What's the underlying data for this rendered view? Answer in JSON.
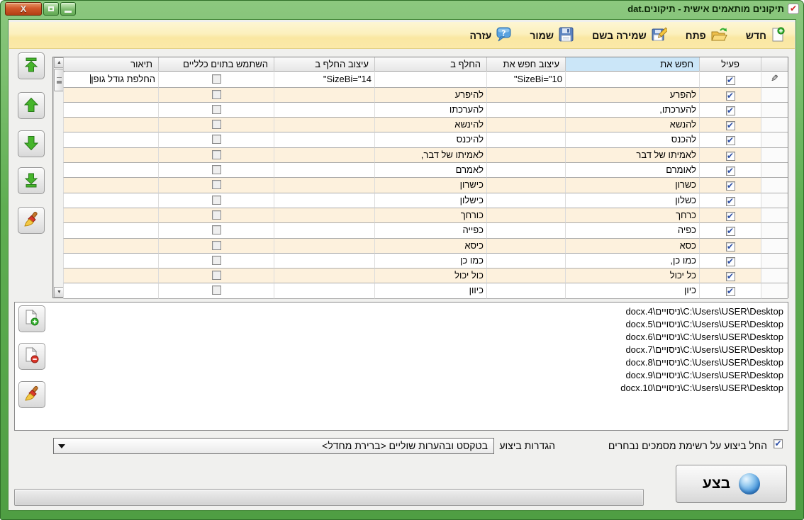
{
  "window": {
    "title": "תיקונים מותאמים אישית - תיקונים.dat",
    "title_icon": "red-check-icon",
    "controls": {
      "close": "X",
      "maximize": "",
      "minimize": ""
    }
  },
  "toolbar": {
    "buttons": [
      {
        "label": "חדש",
        "icon": "new-document-icon"
      },
      {
        "label": "פתח",
        "icon": "open-folder-icon"
      },
      {
        "label": "שמירה בשם",
        "icon": "save-as-icon"
      },
      {
        "label": "שמור",
        "icon": "save-icon"
      },
      {
        "label": "עזרה",
        "icon": "help-icon"
      }
    ]
  },
  "side_buttons": [
    {
      "icon": "move-top-icon"
    },
    {
      "icon": "move-up-icon"
    },
    {
      "icon": "move-down-icon"
    },
    {
      "icon": "move-bottom-icon"
    },
    {
      "icon": "clear-rules-icon"
    }
  ],
  "table": {
    "columns": [
      "פעיל",
      "חפש את",
      "עיצוב חפש את",
      "החלף ב",
      "עיצוב החלף ב",
      "השתמש בתוים כלליים",
      "תיאור"
    ],
    "highlighted_column": "חפש את",
    "rows": [
      {
        "active": true,
        "find": "",
        "find_format": "SizeBi=\"10\"",
        "replace": "",
        "replace_format": "SizeBi=\"14\"",
        "wildcards": false,
        "description": "החלפת גודל גופן",
        "editing": true
      },
      {
        "active": true,
        "find": "להפרע",
        "find_format": "",
        "replace": "להיפרע",
        "replace_format": "",
        "wildcards": false,
        "description": ""
      },
      {
        "active": true,
        "find": "להערכתו,",
        "find_format": "",
        "replace": "להערכתו",
        "replace_format": "",
        "wildcards": false,
        "description": ""
      },
      {
        "active": true,
        "find": "להנשא",
        "find_format": "",
        "replace": "להינשא",
        "replace_format": "",
        "wildcards": false,
        "description": ""
      },
      {
        "active": true,
        "find": "להכנס",
        "find_format": "",
        "replace": "להיכנס",
        "replace_format": "",
        "wildcards": false,
        "description": ""
      },
      {
        "active": true,
        "find": "לאמיתו של דבר",
        "find_format": "",
        "replace": "לאמיתו של דבר,",
        "replace_format": "",
        "wildcards": false,
        "description": ""
      },
      {
        "active": true,
        "find": "לאומרם",
        "find_format": "",
        "replace": "לאמרם",
        "replace_format": "",
        "wildcards": false,
        "description": ""
      },
      {
        "active": true,
        "find": "כשרון",
        "find_format": "",
        "replace": "כישרון",
        "replace_format": "",
        "wildcards": false,
        "description": ""
      },
      {
        "active": true,
        "find": "כשלון",
        "find_format": "",
        "replace": "כישלון",
        "replace_format": "",
        "wildcards": false,
        "description": ""
      },
      {
        "active": true,
        "find": "כרחך",
        "find_format": "",
        "replace": "כורחך",
        "replace_format": "",
        "wildcards": false,
        "description": ""
      },
      {
        "active": true,
        "find": "כפיה",
        "find_format": "",
        "replace": "כפייה",
        "replace_format": "",
        "wildcards": false,
        "description": ""
      },
      {
        "active": true,
        "find": "כסא",
        "find_format": "",
        "replace": "כיסא",
        "replace_format": "",
        "wildcards": false,
        "description": ""
      },
      {
        "active": true,
        "find": "כמו כן,",
        "find_format": "",
        "replace": "כמו כן",
        "replace_format": "",
        "wildcards": false,
        "description": ""
      },
      {
        "active": true,
        "find": "כל יכול",
        "find_format": "",
        "replace": "כול יכול",
        "replace_format": "",
        "wildcards": false,
        "description": ""
      },
      {
        "active": true,
        "find": "כיון",
        "find_format": "",
        "replace": "כיוון",
        "replace_format": "",
        "wildcards": false,
        "description": ""
      }
    ]
  },
  "file_panel": {
    "buttons": [
      {
        "icon": "add-document-icon"
      },
      {
        "icon": "remove-document-icon"
      },
      {
        "icon": "clear-documents-icon"
      }
    ],
    "items": [
      "C:\\Users\\USER\\Desktop\\ניסויים\\4.docx",
      "C:\\Users\\USER\\Desktop\\ניסויים\\5.docx",
      "C:\\Users\\USER\\Desktop\\ניסויים\\6.docx",
      "C:\\Users\\USER\\Desktop\\ניסויים\\7.docx",
      "C:\\Users\\USER\\Desktop\\ניסויים\\8.docx",
      "C:\\Users\\USER\\Desktop\\ניסויים\\9.docx",
      "C:\\Users\\USER\\Desktop\\ניסויים\\10.docx"
    ]
  },
  "execution": {
    "apply_checked": true,
    "apply_label": "החל ביצוע על רשימת מסמכים נבחרים",
    "settings_label": "הגדרות ביצוע",
    "profile_value": "בטקסט ובהערות שוליים <ברירת מחדל>",
    "execute_label": "בצע",
    "progress_value": 0
  },
  "colors": {
    "frame_green": "#5fae52",
    "toolbar_yellow": "#fbe9a8",
    "row_alt": "#fdf1dd",
    "header_highlight": "#cbe6f8",
    "check_blue": "#2d4fa5",
    "orb_blue": "#4f9bdd"
  }
}
